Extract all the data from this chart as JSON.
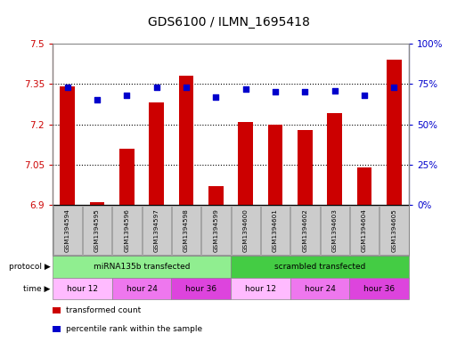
{
  "title": "GDS6100 / ILMN_1695418",
  "samples": [
    "GSM1394594",
    "GSM1394595",
    "GSM1394596",
    "GSM1394597",
    "GSM1394598",
    "GSM1394599",
    "GSM1394600",
    "GSM1394601",
    "GSM1394602",
    "GSM1394603",
    "GSM1394604",
    "GSM1394605"
  ],
  "bar_values": [
    7.34,
    6.91,
    7.11,
    7.28,
    7.38,
    6.97,
    7.21,
    7.2,
    7.18,
    7.24,
    7.04,
    7.44
  ],
  "percentile_values": [
    73,
    65,
    68,
    73,
    73,
    67,
    72,
    70,
    70,
    71,
    68,
    73
  ],
  "ylim_left": [
    6.9,
    7.5
  ],
  "ylim_right": [
    0,
    100
  ],
  "yticks_left": [
    6.9,
    7.05,
    7.2,
    7.35,
    7.5
  ],
  "yticks_right": [
    0,
    25,
    50,
    75,
    100
  ],
  "ytick_labels_right": [
    "0%",
    "25%",
    "50%",
    "75%",
    "100%"
  ],
  "bar_color": "#cc0000",
  "dot_color": "#0000cc",
  "bar_width": 0.5,
  "bar_base": 6.9,
  "dotted_lines": [
    7.05,
    7.2,
    7.35
  ],
  "protocol_groups": [
    {
      "label": "miRNA135b transfected",
      "start": 0,
      "end": 6,
      "color": "#90ee90"
    },
    {
      "label": "scrambled transfected",
      "start": 6,
      "end": 12,
      "color": "#44cc44"
    }
  ],
  "time_groups": [
    {
      "label": "hour 12",
      "start": 0,
      "end": 2,
      "color": "#ffbbff"
    },
    {
      "label": "hour 24",
      "start": 2,
      "end": 4,
      "color": "#ee77ee"
    },
    {
      "label": "hour 36",
      "start": 4,
      "end": 6,
      "color": "#dd44dd"
    },
    {
      "label": "hour 12",
      "start": 6,
      "end": 8,
      "color": "#ffbbff"
    },
    {
      "label": "hour 24",
      "start": 8,
      "end": 10,
      "color": "#ee77ee"
    },
    {
      "label": "hour 36",
      "start": 10,
      "end": 12,
      "color": "#dd44dd"
    }
  ],
  "legend_items": [
    {
      "label": "transformed count",
      "color": "#cc0000"
    },
    {
      "label": "percentile rank within the sample",
      "color": "#0000cc"
    }
  ],
  "bg_color": "#ffffff",
  "tick_label_bg": "#cccccc",
  "outer_border_color": "#888888"
}
